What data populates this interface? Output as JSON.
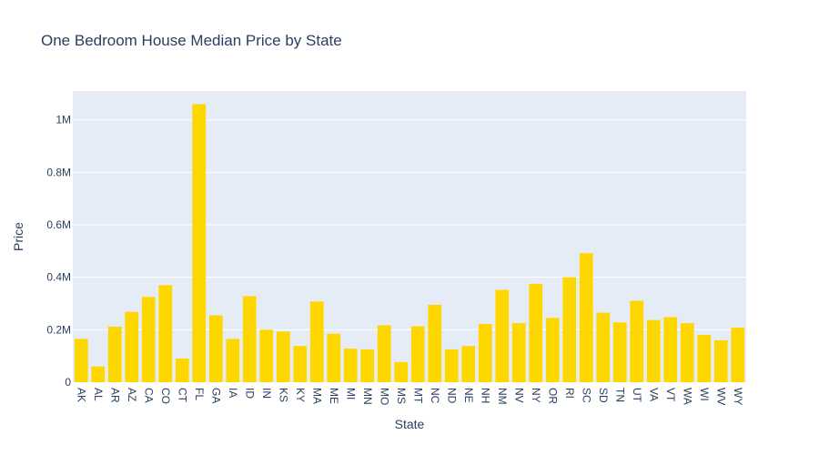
{
  "chart_data": {
    "type": "bar",
    "title": "One Bedroom House Median Price by State",
    "xlabel": "State",
    "ylabel": "Price",
    "categories": [
      "AK",
      "AL",
      "AR",
      "AZ",
      "CA",
      "CO",
      "CT",
      "FL",
      "GA",
      "IA",
      "ID",
      "IN",
      "KS",
      "KY",
      "MA",
      "ME",
      "MI",
      "MN",
      "MO",
      "MS",
      "MT",
      "NC",
      "ND",
      "NE",
      "NH",
      "NM",
      "NV",
      "NY",
      "OR",
      "RI",
      "SC",
      "SD",
      "TN",
      "UT",
      "VA",
      "VT",
      "WA",
      "WI",
      "WV",
      "WY"
    ],
    "values": [
      165000,
      60000,
      212000,
      268000,
      325000,
      370000,
      90000,
      1060000,
      255000,
      165000,
      328000,
      200000,
      193000,
      138000,
      308000,
      185000,
      128000,
      125000,
      217000,
      77000,
      213000,
      295000,
      125000,
      138000,
      222000,
      352000,
      225000,
      375000,
      245000,
      400000,
      492000,
      265000,
      228000,
      310000,
      237000,
      248000,
      225000,
      180000,
      160000,
      208000
    ],
    "ylim": [
      0,
      1110000
    ],
    "yticks": [
      0,
      200000,
      400000,
      600000,
      800000,
      1000000
    ],
    "ytick_labels": [
      "0",
      "0.2M",
      "0.4M",
      "0.6M",
      "0.8M",
      "1M"
    ],
    "bar_color": "#ffd700",
    "plot_bg": "#e5ecf6",
    "grid": true
  }
}
